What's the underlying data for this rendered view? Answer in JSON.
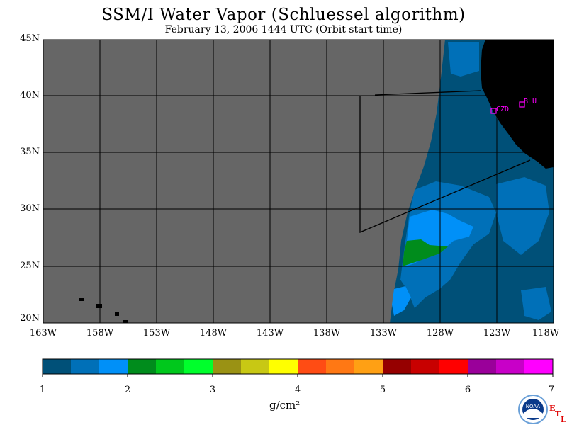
{
  "title": "SSM/I Water Vapor (Schluessel algorithm)",
  "subtitle": "February 13, 2006  1444 UTC  (Orbit start time)",
  "map": {
    "lat_labels": [
      "45N",
      "40N",
      "35N",
      "30N",
      "25N",
      "20N"
    ],
    "lon_labels": [
      "163W",
      "158W",
      "153W",
      "148W",
      "143W",
      "138W",
      "133W",
      "128W",
      "123W",
      "118W"
    ],
    "stations": [
      {
        "name": "CZD"
      },
      {
        "name": "BLU"
      }
    ],
    "colors": {
      "no_data": "#666666",
      "land": "#000000",
      "station": "#ff00ff"
    }
  },
  "colorbar": {
    "unit": "g/cm²",
    "labels": [
      "1",
      "2",
      "3",
      "4",
      "5",
      "6",
      "7"
    ],
    "colors": [
      "#005078",
      "#0070b8",
      "#0090f8",
      "#008c1c",
      "#00c81c",
      "#00ff2c",
      "#9a9214",
      "#c8c814",
      "#ffff00",
      "#ff4c14",
      "#ff7814",
      "#ffa014",
      "#960000",
      "#c80000",
      "#ff0000",
      "#9a009a",
      "#c800c8",
      "#ff00ff"
    ]
  },
  "logo": {
    "name": "NOAA",
    "letters": [
      "E",
      "T",
      "L"
    ]
  }
}
